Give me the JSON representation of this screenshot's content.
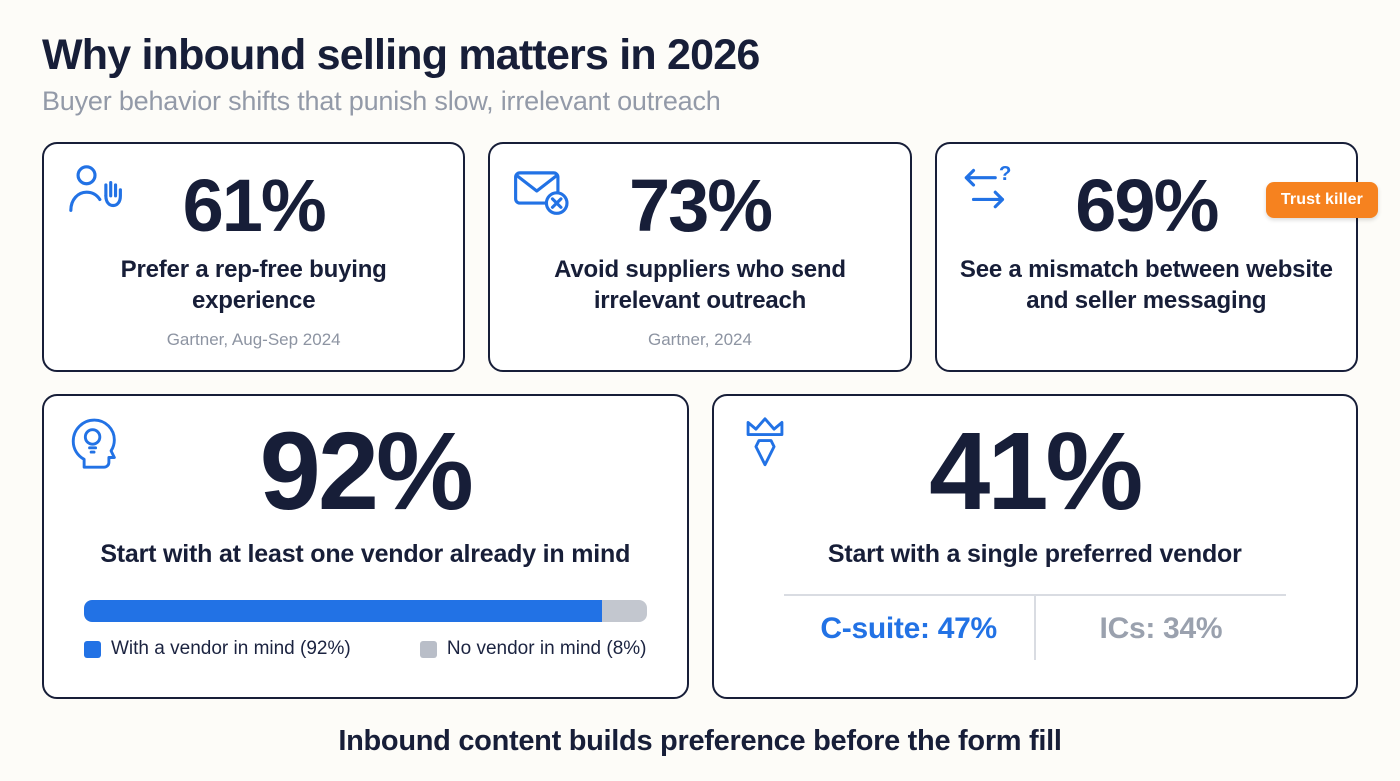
{
  "page": {
    "title": "Why inbound selling matters in 2026",
    "subtitle": "Buyer behavior shifts that punish slow, irrelevant outreach",
    "footer": "Inbound content builds preference before the form fill"
  },
  "colors": {
    "navy": "#171e38",
    "accent_blue": "#2272e5",
    "badge_orange": "#f6821f",
    "muted_gray": "#939aa8",
    "bar_gray": "#c3c7cf"
  },
  "cards": {
    "rep_free": {
      "value": "61%",
      "label": "Prefer a rep-free buying experience",
      "source": "Gartner, Aug-Sep 2024",
      "icon": "person-wave-icon"
    },
    "outreach": {
      "value": "73%",
      "label": "Avoid suppliers who send irrelevant outreach",
      "source": "Gartner, 2024",
      "icon": "email-blocked-icon"
    },
    "mismatch": {
      "value": "69%",
      "label": "See a mismatch between website and seller messaging",
      "badge": "Trust killer",
      "icon": "arrows-question-icon"
    },
    "vendor_mind": {
      "value": "92%",
      "label": "Start with at least one vendor already in mind",
      "icon": "head-lightbulb-icon",
      "bar": {
        "with_vendor_pct": 92,
        "no_vendor_pct": 8
      },
      "legend": [
        {
          "label": "With a vendor in mind (92%)",
          "color": "#2272e5"
        },
        {
          "label": "No vendor in mind (8%)",
          "color": "#b9bec8"
        }
      ]
    },
    "preferred": {
      "value": "41%",
      "label": "Start with a single preferred vendor",
      "icon": "crown-tie-icon",
      "split": [
        {
          "label": "C-suite: 47%",
          "color": "#2272e5"
        },
        {
          "label": "ICs: 34%",
          "color": "#9aa1ae"
        }
      ]
    }
  },
  "chart_data": {
    "type": "bar",
    "title": "Why inbound selling matters in 2026",
    "subtitle": "Buyer behavior shifts that punish slow, irrelevant outreach",
    "footer": "Inbound content builds preference before the form fill",
    "stats": [
      {
        "label": "Prefer a rep-free buying experience",
        "value_pct": 61,
        "source": "Gartner, Aug-Sep 2024"
      },
      {
        "label": "Avoid suppliers who send irrelevant outreach",
        "value_pct": 73,
        "source": "Gartner, 2024"
      },
      {
        "label": "See a mismatch between website and seller messaging",
        "value_pct": 69,
        "badge": "Trust killer"
      },
      {
        "label": "Start with at least one vendor already in mind",
        "value_pct": 92,
        "breakdown": [
          {
            "label": "With a vendor in mind",
            "value_pct": 92
          },
          {
            "label": "No vendor in mind",
            "value_pct": 8
          }
        ]
      },
      {
        "label": "Start with a single preferred vendor",
        "value_pct": 41,
        "breakdown": [
          {
            "label": "C-suite",
            "value_pct": 47
          },
          {
            "label": "ICs",
            "value_pct": 34
          }
        ]
      }
    ]
  }
}
